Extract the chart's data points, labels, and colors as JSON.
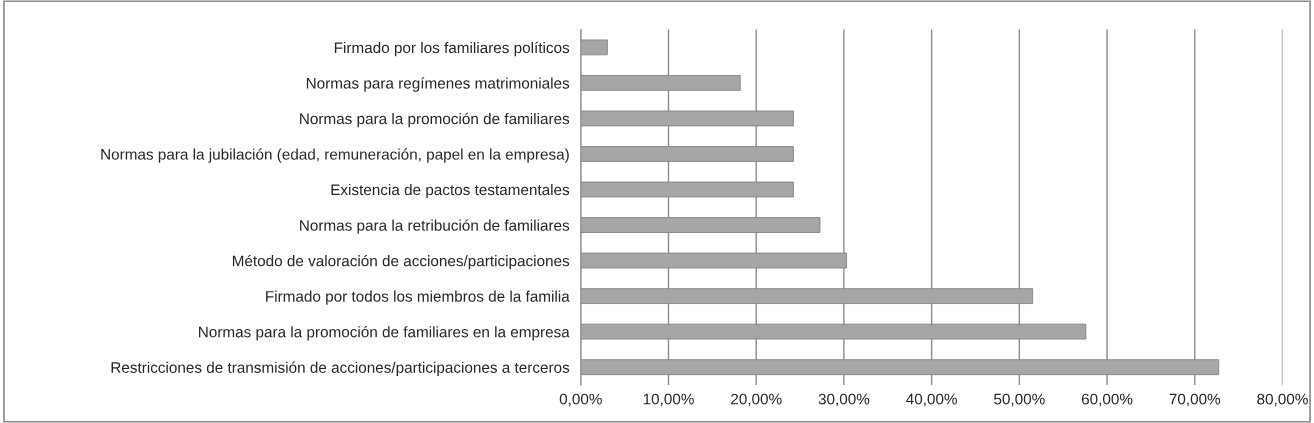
{
  "chart_data": {
    "type": "bar",
    "orientation": "horizontal",
    "categories": [
      "Firmado por los familiares políticos",
      "Normas para regímenes matrimoniales",
      "Normas para la promoción de familiares",
      "Normas para la jubilación (edad, remuneración, papel en la empresa)",
      "Existencia de pactos testamentales",
      "Normas para la retribución de familiares",
      "Método de valoración de acciones/participaciones",
      "Firmado por todos los miembros de la familia",
      "Normas para la promoción de familiares en la empresa",
      "Restricciones de transmisión de acciones/participaciones a terceros"
    ],
    "values": [
      3.03,
      18.18,
      24.24,
      24.24,
      24.24,
      27.27,
      30.3,
      51.52,
      57.58,
      72.73
    ],
    "color": "#a6a6a6",
    "xlim": [
      0,
      80
    ],
    "xticks": [
      {
        "value": 0,
        "label": "0,00%"
      },
      {
        "value": 10,
        "label": "10,00%"
      },
      {
        "value": 20,
        "label": "20,00%"
      },
      {
        "value": 30,
        "label": "30,00%"
      },
      {
        "value": 40,
        "label": "40,00%"
      },
      {
        "value": 50,
        "label": "50,00%"
      },
      {
        "value": 60,
        "label": "60,00%"
      },
      {
        "value": 70,
        "label": "70,00%"
      },
      {
        "value": 80,
        "label": "80,00%"
      }
    ],
    "grid": "x"
  }
}
